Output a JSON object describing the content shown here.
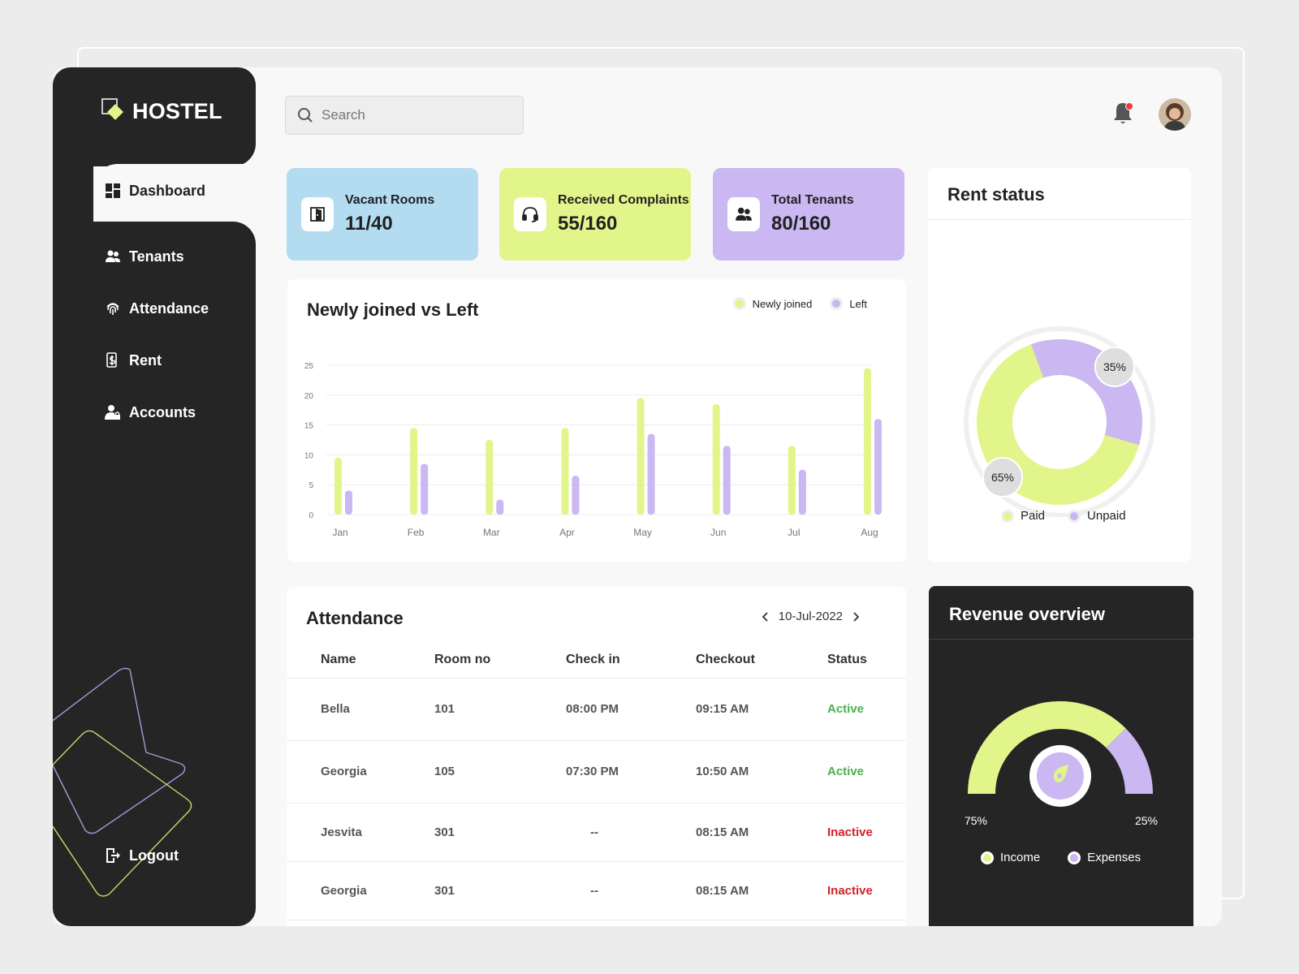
{
  "brand": {
    "name": "HOSTEL"
  },
  "search": {
    "placeholder": "Search"
  },
  "nav": {
    "dashboard": "Dashboard",
    "tenants": "Tenants",
    "attendance": "Attendance",
    "rent": "Rent",
    "accounts": "Accounts",
    "logout": "Logout"
  },
  "stats": {
    "vacant": {
      "label": "Vacant Rooms",
      "value": "11/40"
    },
    "complaints": {
      "label": "Received Complaints",
      "value": "55/160"
    },
    "tenants": {
      "label": "Total Tenants",
      "value": "80/160"
    }
  },
  "colors": {
    "lime": "#e2f58a",
    "purple": "#cbb7f1",
    "blue": "#b3dcf0",
    "dark": "#252525",
    "active": "#4caf50",
    "inactive": "#d32029"
  },
  "chart_data": {
    "type": "bar",
    "title": "Newly joined vs Left",
    "categories": [
      "Jan",
      "Feb",
      "Mar",
      "Apr",
      "May",
      "Jun",
      "Jul",
      "Aug"
    ],
    "series": [
      {
        "name": "Newly joined",
        "values": [
          9.5,
          14.5,
          12.5,
          14.5,
          19.5,
          18.5,
          11.5,
          24.5
        ]
      },
      {
        "name": "Left",
        "values": [
          4,
          8.5,
          2.5,
          6.5,
          13.5,
          11.5,
          7.5,
          16
        ]
      }
    ],
    "yticks": [
      0,
      5,
      10,
      15,
      20,
      25
    ],
    "ylim": [
      0,
      25
    ],
    "grid": true,
    "legend": "top-right"
  },
  "rent_status": {
    "title": "Rent status",
    "paid_label": "Paid",
    "unpaid_label": "Unpaid",
    "paid_pct": 65,
    "unpaid_pct": 35,
    "paid_text": "65%",
    "unpaid_text": "35%"
  },
  "attendance": {
    "title": "Attendance",
    "date": "10-Jul-2022",
    "columns": [
      "Name",
      "Room no",
      "Check in",
      "Checkout",
      "Status"
    ],
    "rows": [
      {
        "name": "Bella",
        "room": "101",
        "checkin": "08:00 PM",
        "checkout": "09:15 AM",
        "status": "Active"
      },
      {
        "name": "Georgia",
        "room": "105",
        "checkin": "07:30 PM",
        "checkout": "10:50 AM",
        "status": "Active"
      },
      {
        "name": "Jesvita",
        "room": "301",
        "checkin": "--",
        "checkout": "08:15 AM",
        "status": "Inactive"
      },
      {
        "name": "Georgia",
        "room": "301",
        "checkin": "--",
        "checkout": "08:15 AM",
        "status": "Inactive"
      }
    ]
  },
  "revenue": {
    "title": "Revenue overview",
    "income_label": "Income",
    "expenses_label": "Expenses",
    "income_pct": 75,
    "expenses_pct": 25,
    "income_text": "75%",
    "expenses_text": "25%"
  }
}
